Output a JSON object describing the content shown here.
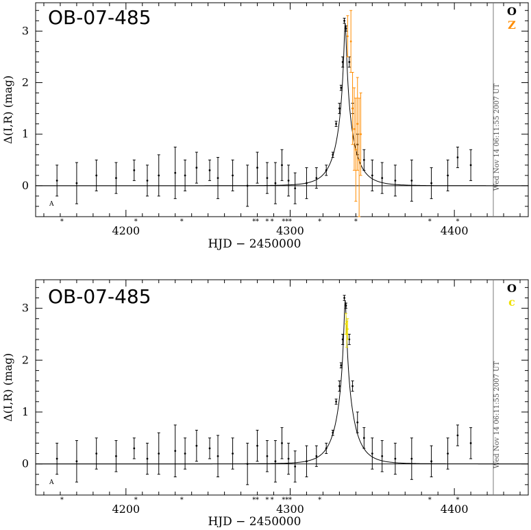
{
  "chart_data": [
    {
      "type": "scatter",
      "title": "OB-07-485",
      "xlabel": "HJD − 2450000",
      "ylabel": "Δ(I,R) (mag)",
      "xlim": [
        4145,
        4445
      ],
      "ylim": [
        -0.6,
        3.55
      ],
      "xticks": [
        4200,
        4300,
        4400
      ],
      "yticks": [
        0,
        1,
        2,
        3
      ],
      "grid": false,
      "legend_position": "top-right",
      "timestamp": "Wed Nov 14 06:11:55 2007 UT",
      "corner_mark": "A",
      "series": [
        {
          "name": "O",
          "color": "#000000",
          "x": [
            4158,
            4170,
            4182,
            4194,
            4205,
            4213,
            4220,
            4230,
            4236,
            4243,
            4251,
            4256,
            4265,
            4274,
            4280,
            4286,
            4291,
            4295,
            4299,
            4303,
            4310,
            4316,
            4322,
            4326,
            4328,
            4330,
            4331,
            4332,
            4333,
            4334,
            4336,
            4338,
            4341,
            4345,
            4350,
            4356,
            4364,
            4374,
            4386,
            4396,
            4402,
            4410
          ],
          "y": [
            0.1,
            0.05,
            0.2,
            0.15,
            0.3,
            0.1,
            0.2,
            0.25,
            0.2,
            0.35,
            0.3,
            0.15,
            0.2,
            0.0,
            0.35,
            0.15,
            0.05,
            0.4,
            0.1,
            -0.05,
            0.05,
            0.15,
            0.3,
            0.6,
            1.2,
            1.5,
            1.9,
            2.4,
            3.2,
            3.05,
            2.4,
            1.5,
            0.8,
            0.5,
            0.2,
            0.15,
            0.1,
            0.1,
            0.05,
            0.2,
            0.55,
            0.4
          ],
          "err": [
            0.3,
            0.4,
            0.3,
            0.3,
            0.2,
            0.3,
            0.4,
            0.5,
            0.3,
            0.3,
            0.2,
            0.4,
            0.3,
            0.4,
            0.3,
            0.3,
            0.4,
            0.3,
            0.3,
            0.3,
            0.3,
            0.2,
            0.1,
            0.05,
            0.05,
            0.1,
            0.05,
            0.1,
            0.05,
            0.05,
            0.1,
            0.1,
            0.2,
            0.2,
            0.3,
            0.3,
            0.3,
            0.4,
            0.3,
            0.3,
            0.2,
            0.3
          ]
        },
        {
          "name": "Z",
          "color": "#ff8c00",
          "x": [
            4335,
            4337,
            4338,
            4339,
            4340,
            4341,
            4342,
            4343
          ],
          "y": [
            2.9,
            2.8,
            1.5,
            1.1,
            0.7,
            1.2,
            0.5,
            1.0
          ],
          "err": [
            0.4,
            0.6,
            0.7,
            0.8,
            1.0,
            0.9,
            1.2,
            0.8
          ]
        }
      ],
      "model_curve": {
        "color": "#000000",
        "t0": 4333.5,
        "u0": 0.055,
        "tE": 11.0
      },
      "asterisk_markers_x": [
        4161,
        4206,
        4234,
        4278,
        4280,
        4286,
        4289,
        4296,
        4298,
        4300,
        4318,
        4340,
        4385,
        4402
      ]
    },
    {
      "type": "scatter",
      "title": "OB-07-485",
      "xlabel": "HJD − 2450000",
      "ylabel": "Δ(I,R) (mag)",
      "xlim": [
        4145,
        4445
      ],
      "ylim": [
        -0.6,
        3.55
      ],
      "xticks": [
        4200,
        4300,
        4400
      ],
      "yticks": [
        0,
        1,
        2,
        3
      ],
      "grid": false,
      "legend_position": "top-right",
      "timestamp": "Wed Nov 14 06:11:55 2007 UT",
      "corner_mark": "A",
      "series": [
        {
          "name": "O",
          "color": "#000000",
          "x": [
            4158,
            4170,
            4182,
            4194,
            4205,
            4213,
            4220,
            4230,
            4236,
            4243,
            4251,
            4256,
            4265,
            4274,
            4280,
            4286,
            4291,
            4295,
            4299,
            4303,
            4310,
            4316,
            4322,
            4326,
            4328,
            4330,
            4331,
            4332,
            4333,
            4334,
            4336,
            4338,
            4341,
            4345,
            4350,
            4356,
            4364,
            4374,
            4386,
            4396,
            4402,
            4410
          ],
          "y": [
            0.1,
            0.05,
            0.2,
            0.15,
            0.3,
            0.1,
            0.2,
            0.25,
            0.2,
            0.35,
            0.3,
            0.15,
            0.2,
            0.0,
            0.35,
            0.15,
            0.05,
            0.4,
            0.1,
            -0.05,
            0.05,
            0.15,
            0.3,
            0.6,
            1.2,
            1.5,
            1.9,
            2.4,
            3.2,
            3.05,
            2.4,
            1.5,
            0.8,
            0.5,
            0.2,
            0.15,
            0.1,
            0.1,
            0.05,
            0.2,
            0.55,
            0.4
          ],
          "err": [
            0.3,
            0.4,
            0.3,
            0.3,
            0.2,
            0.3,
            0.4,
            0.5,
            0.3,
            0.3,
            0.2,
            0.4,
            0.3,
            0.4,
            0.3,
            0.3,
            0.4,
            0.3,
            0.3,
            0.3,
            0.3,
            0.2,
            0.1,
            0.05,
            0.05,
            0.1,
            0.05,
            0.1,
            0.05,
            0.05,
            0.1,
            0.1,
            0.2,
            0.2,
            0.3,
            0.3,
            0.3,
            0.4,
            0.3,
            0.3,
            0.2,
            0.3
          ]
        },
        {
          "name": "c",
          "color": "#f0e000",
          "x": [
            4334,
            4334.5,
            4335
          ],
          "y": [
            2.7,
            2.5,
            2.6
          ],
          "err": [
            0.2,
            0.25,
            0.2
          ]
        }
      ],
      "model_curve": {
        "color": "#000000",
        "t0": 4333.5,
        "u0": 0.055,
        "tE": 11.0
      },
      "asterisk_markers_x": [
        4161,
        4206,
        4234,
        4278,
        4280,
        4286,
        4289,
        4296,
        4298,
        4300,
        4318,
        4385,
        4402
      ]
    }
  ]
}
